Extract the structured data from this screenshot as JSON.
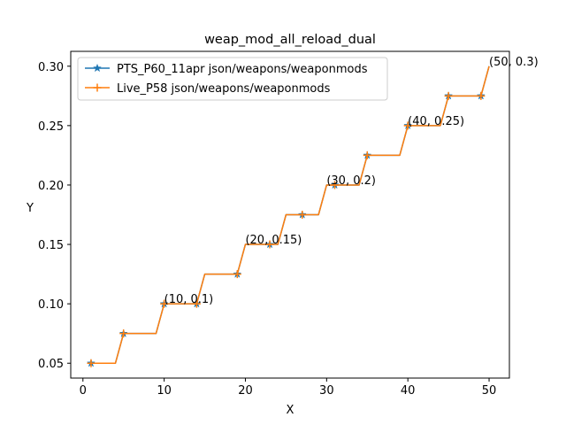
{
  "chart_data": {
    "type": "line",
    "title": "weap_mod_all_reload_dual",
    "xlabel": "X",
    "ylabel": "Y",
    "xlim": [
      -1.5,
      52.5
    ],
    "ylim": [
      0.0375,
      0.3125
    ],
    "xticks": [
      0,
      10,
      20,
      30,
      40,
      50
    ],
    "yticks": [
      0.05,
      0.1,
      0.15,
      0.2,
      0.25,
      0.3
    ],
    "ytick_labels": [
      "0.05",
      "0.10",
      "0.15",
      "0.20",
      "0.25",
      "0.30"
    ],
    "legend_position": "top-left",
    "grid": false,
    "x": [
      1,
      2,
      3,
      4,
      5,
      6,
      7,
      8,
      9,
      10,
      11,
      12,
      13,
      14,
      15,
      16,
      17,
      18,
      19,
      20,
      21,
      22,
      23,
      24,
      25,
      26,
      27,
      28,
      29,
      30,
      31,
      32,
      33,
      34,
      35,
      36,
      37,
      38,
      39,
      40,
      41,
      42,
      43,
      44,
      45,
      46,
      47,
      48,
      49,
      50
    ],
    "series": [
      {
        "name": "PTS_P60_11apr json/weapons/weaponmods",
        "color": "#1f77b4",
        "marker": "star",
        "values": [
          0.05,
          0.05,
          0.05,
          0.05,
          0.075,
          0.075,
          0.075,
          0.075,
          0.075,
          0.1,
          0.1,
          0.1,
          0.1,
          0.1,
          0.125,
          0.125,
          0.125,
          0.125,
          0.125,
          0.15,
          0.15,
          0.15,
          0.15,
          0.15,
          0.175,
          0.175,
          0.175,
          0.175,
          0.175,
          0.2,
          0.2,
          0.2,
          0.2,
          0.2,
          0.225,
          0.225,
          0.225,
          0.225,
          0.225,
          0.25,
          0.25,
          0.25,
          0.25,
          0.25,
          0.275,
          0.275,
          0.275,
          0.275,
          0.275,
          0.3
        ]
      },
      {
        "name": "Live_P58 json/weapons/weaponmods",
        "color": "#ff7f0e",
        "marker": "plus",
        "values": [
          0.05,
          0.05,
          0.05,
          0.05,
          0.075,
          0.075,
          0.075,
          0.075,
          0.075,
          0.1,
          0.1,
          0.1,
          0.1,
          0.1,
          0.125,
          0.125,
          0.125,
          0.125,
          0.125,
          0.15,
          0.15,
          0.15,
          0.15,
          0.15,
          0.175,
          0.175,
          0.175,
          0.175,
          0.175,
          0.2,
          0.2,
          0.2,
          0.2,
          0.2,
          0.225,
          0.225,
          0.225,
          0.225,
          0.225,
          0.25,
          0.25,
          0.25,
          0.25,
          0.25,
          0.275,
          0.275,
          0.275,
          0.275,
          0.275,
          0.3
        ]
      }
    ],
    "markers_at": [
      1,
      5,
      10,
      14,
      19,
      23,
      27,
      31,
      35,
      40,
      45,
      49
    ],
    "annotations": [
      {
        "x": 10,
        "y": 0.1,
        "text": "(10, 0.1)"
      },
      {
        "x": 20,
        "y": 0.15,
        "text": "(20, 0.15)"
      },
      {
        "x": 30,
        "y": 0.2,
        "text": "(30, 0.2)"
      },
      {
        "x": 40,
        "y": 0.25,
        "text": "(40, 0.25)"
      },
      {
        "x": 50,
        "y": 0.3,
        "text": "(50, 0.3)"
      }
    ]
  }
}
